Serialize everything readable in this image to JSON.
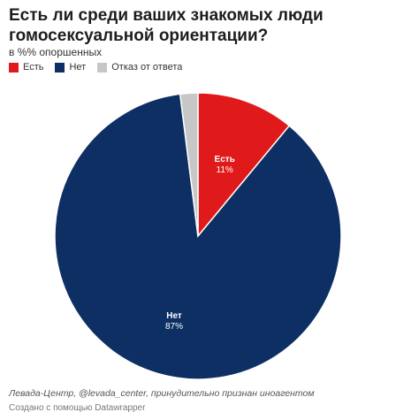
{
  "title": "Есть ли среди ваших знакомых люди гомосексуальной ориентации?",
  "subtitle": "в %% опоршенных",
  "legend": [
    {
      "label": "Есть",
      "color": "#e01a1a"
    },
    {
      "label": "Нет",
      "color": "#0d2f63"
    },
    {
      "label": "Отказ от ответа",
      "color": "#c7c7c7"
    }
  ],
  "chart_data": {
    "type": "pie",
    "categories": [
      "Есть",
      "Нет",
      "Отказ от ответа"
    ],
    "values": [
      11,
      87,
      2
    ],
    "colors": [
      "#e01a1a",
      "#0d2f63",
      "#c7c7c7"
    ],
    "data_labels": [
      {
        "name": "Есть",
        "value": "11%"
      },
      {
        "name": "Нет",
        "value": "87%"
      }
    ],
    "start": "12 o'clock",
    "direction": "clockwise"
  },
  "footer": {
    "source": "Левада-Центр, @levada_center, принудительно признан иноагентом",
    "credit": "Создано с помощью Datawrapper"
  }
}
